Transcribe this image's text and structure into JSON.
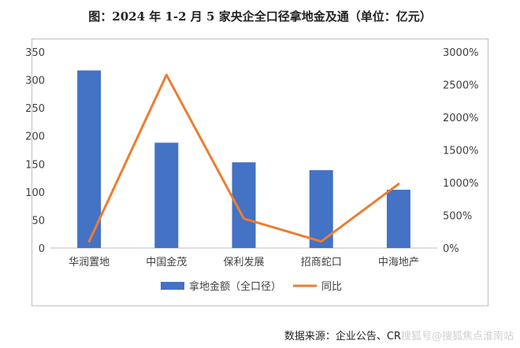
{
  "chart_data": {
    "type": "bar",
    "title": "图：2024 年 1-2 月 5 家央企全口径拿地金及通（单位：亿元）",
    "categories": [
      "华润置地",
      "中国金茂",
      "保利发展",
      "招商蛇口",
      "中海地产"
    ],
    "series": [
      {
        "name": "拿地金额（全口径）",
        "type": "bar",
        "axis": "left",
        "values": [
          317,
          188,
          153,
          139,
          104
        ],
        "color": "#4472c4"
      },
      {
        "name": "同比",
        "type": "line",
        "axis": "right",
        "values": [
          100,
          2650,
          450,
          100,
          980
        ],
        "color": "#ed7d31"
      }
    ],
    "y_left": {
      "min": 0,
      "max": 350,
      "ticks": [
        "0",
        "50",
        "100",
        "150",
        "200",
        "250",
        "300",
        "350"
      ]
    },
    "y_right": {
      "min": 0,
      "max": 3000,
      "ticks": [
        "0%",
        "500%",
        "1000%",
        "1500%",
        "2000%",
        "2500%",
        "3000%"
      ]
    },
    "grid": false,
    "legend": "bottom"
  },
  "source": {
    "label": "数据来源：企业公告、CR",
    "watermark": "搜狐号@搜狐焦点淮南站"
  }
}
